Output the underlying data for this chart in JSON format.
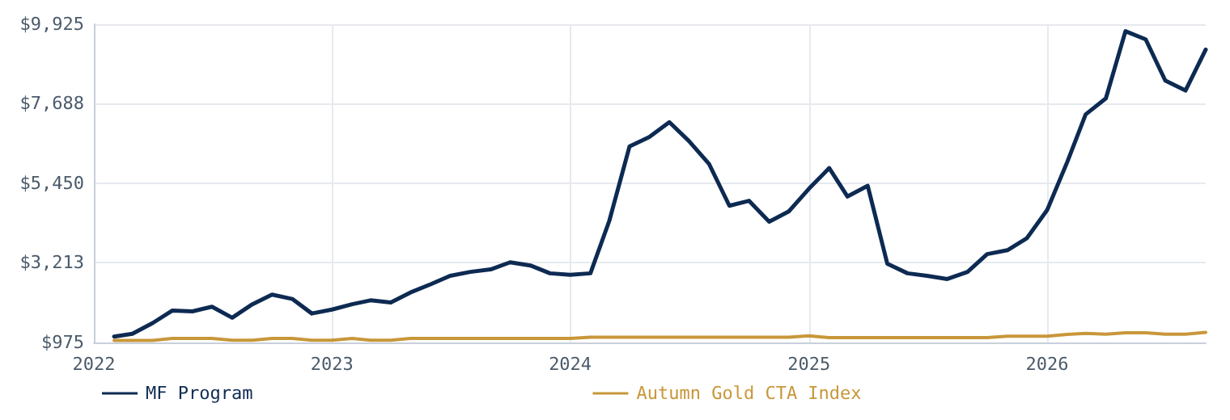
{
  "chart_data": {
    "type": "line",
    "x": [
      "2022-02",
      "2022-03",
      "2022-04",
      "2022-05",
      "2022-06",
      "2022-07",
      "2022-08",
      "2022-09",
      "2022-10",
      "2022-11",
      "2022-12",
      "2023-01",
      "2023-02",
      "2023-03",
      "2023-04",
      "2023-05",
      "2023-06",
      "2023-07",
      "2023-08",
      "2023-09",
      "2023-10",
      "2023-11",
      "2023-12",
      "2024-01",
      "2024-02",
      "2024-03",
      "2024-04",
      "2024-05",
      "2024-06",
      "2024-07",
      "2024-08",
      "2024-09",
      "2024-10",
      "2024-11",
      "2024-12",
      "2025-01",
      "2025-02",
      "2025-03",
      "2025-04",
      "2025-05",
      "2025-06",
      "2025-07",
      "2025-08",
      "2025-09",
      "2025-10",
      "2025-11",
      "2025-12",
      "2026-01",
      "2026-02",
      "2026-03",
      "2026-04",
      "2026-05",
      "2026-06",
      "2026-07",
      "2026-08",
      "2026-09"
    ],
    "series": [
      {
        "name": "MF Program",
        "color": "#0d2a52",
        "values": [
          1140,
          1220,
          1520,
          1870,
          1850,
          1980,
          1670,
          2050,
          2320,
          2200,
          1790,
          1900,
          2050,
          2160,
          2100,
          2380,
          2610,
          2850,
          2960,
          3030,
          3230,
          3140,
          2920,
          2880,
          2920,
          4400,
          6490,
          6750,
          7170,
          6640,
          5990,
          4820,
          4960,
          4370,
          4660,
          5300,
          5880,
          5080,
          5380,
          3190,
          2920,
          2850,
          2760,
          2960,
          3460,
          3570,
          3910,
          4700,
          6060,
          7390,
          7840,
          9730,
          9500,
          8340,
          8060,
          9210
        ]
      },
      {
        "name": "Autumn Gold CTA Index",
        "color": "#c8973a",
        "values": [
          1030,
          1030,
          1030,
          1090,
          1090,
          1090,
          1040,
          1040,
          1090,
          1090,
          1040,
          1040,
          1090,
          1040,
          1040,
          1090,
          1090,
          1090,
          1090,
          1090,
          1090,
          1090,
          1090,
          1090,
          1120,
          1120,
          1120,
          1120,
          1120,
          1120,
          1120,
          1120,
          1120,
          1120,
          1120,
          1160,
          1110,
          1110,
          1110,
          1110,
          1110,
          1110,
          1110,
          1110,
          1110,
          1150,
          1150,
          1150,
          1200,
          1230,
          1210,
          1250,
          1250,
          1210,
          1210,
          1260
        ]
      }
    ],
    "xlim": [
      "2022-01",
      "2026-09"
    ],
    "xticks": [
      "2022",
      "2023",
      "2024",
      "2025",
      "2026"
    ],
    "ylim": [
      975,
      9925
    ],
    "yticks": [
      {
        "value": 975,
        "label": "$975"
      },
      {
        "value": 3213,
        "label": "$3,213"
      },
      {
        "value": 5450,
        "label": "$5,450"
      },
      {
        "value": 7688,
        "label": "$7,688"
      },
      {
        "value": 9925,
        "label": "$9,925"
      }
    ],
    "grid": true,
    "legend": "bottom",
    "marker": "none",
    "line_style": "solid"
  }
}
